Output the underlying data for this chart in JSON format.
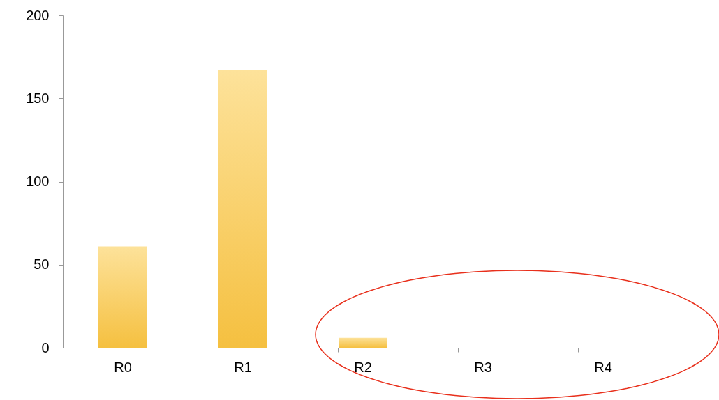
{
  "chart_data": {
    "type": "bar",
    "categories": [
      "R0",
      "R1",
      "R2",
      "R3",
      "R4"
    ],
    "values": [
      61,
      167,
      6,
      0,
      0
    ],
    "color": "#f5c040",
    "ylim": [
      0,
      200
    ],
    "yticks": [
      0,
      50,
      100,
      150,
      200
    ],
    "grid": false
  }
}
